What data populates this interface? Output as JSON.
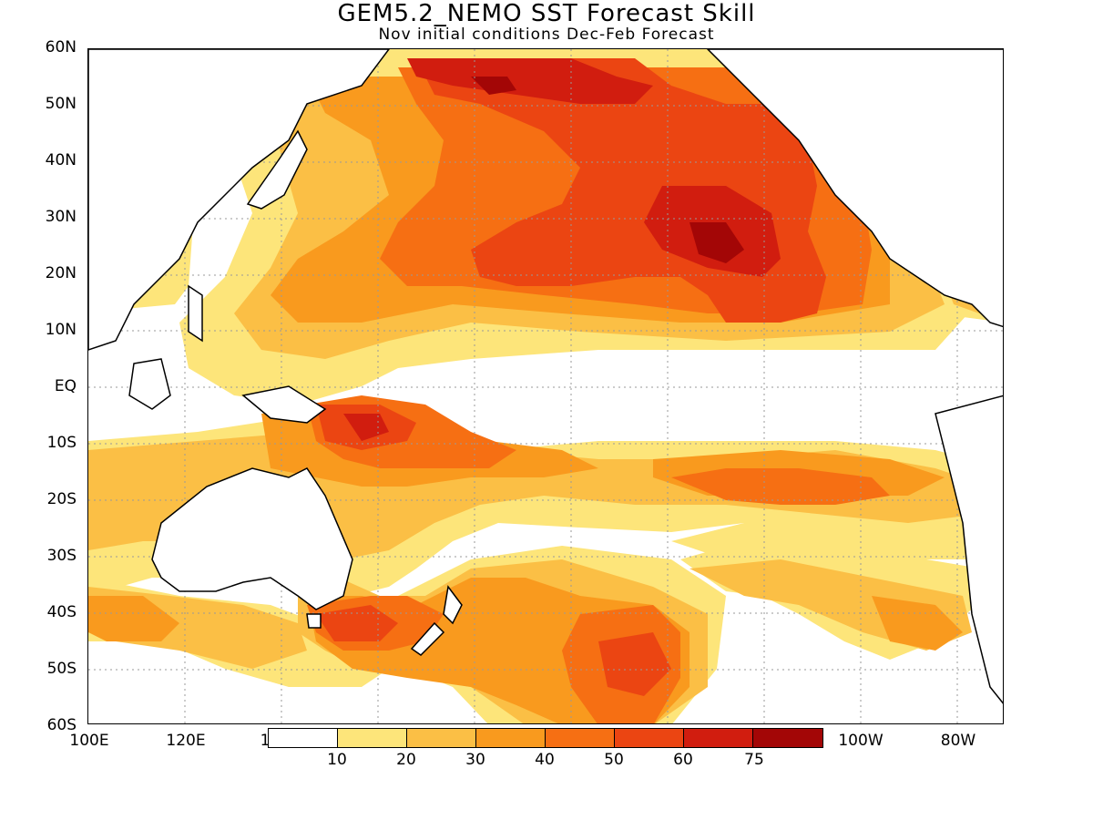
{
  "title": "GEM5.2_NEMO SST Forecast Skill",
  "subtitle": "Nov initial conditions  Dec-Feb Forecast",
  "y_ticks": [
    "60N",
    "50N",
    "40N",
    "30N",
    "20N",
    "10N",
    "EQ",
    "10S",
    "20S",
    "30S",
    "40S",
    "50S",
    "60S"
  ],
  "x_ticks": [
    "100E",
    "120E",
    "1",
    "100W",
    "80W"
  ],
  "colorbar": {
    "labels": [
      "10",
      "20",
      "30",
      "40",
      "50",
      "60",
      "75"
    ],
    "colors": [
      "#ffffff",
      "#fde57a",
      "#fbbf45",
      "#f99a1e",
      "#f66f13",
      "#eb4512",
      "#d11d0f",
      "#a30606"
    ]
  },
  "colors": {
    "land_line": "#000000",
    "grid": "#999999"
  }
}
